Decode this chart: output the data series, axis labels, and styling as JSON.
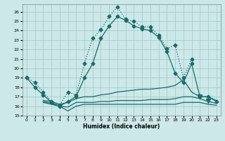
{
  "xlabel": "Humidex (Indice chaleur)",
  "background_color": "#cce8e8",
  "grid_color": "#aacccc",
  "line_color": "#1a6b6b",
  "xlim": [
    -0.5,
    23.5
  ],
  "ylim": [
    15,
    26.8
  ],
  "xticks": [
    0,
    1,
    2,
    3,
    4,
    5,
    6,
    7,
    8,
    9,
    10,
    11,
    12,
    13,
    14,
    15,
    16,
    17,
    18,
    19,
    20,
    21,
    22,
    23
  ],
  "yticks": [
    15,
    16,
    17,
    18,
    19,
    20,
    21,
    22,
    23,
    24,
    25,
    26
  ],
  "series": {
    "line1_dotted": {
      "x": [
        0,
        1,
        2,
        3,
        4,
        5,
        6,
        7,
        8,
        9,
        10,
        11,
        12,
        13,
        14,
        15,
        16,
        17,
        18,
        19,
        20
      ],
      "y": [
        19.0,
        18.5,
        17.5,
        16.5,
        16.1,
        17.5,
        17.2,
        20.5,
        23.2,
        24.1,
        25.5,
        26.5,
        25.2,
        25.0,
        24.4,
        24.4,
        23.5,
        22.1,
        22.5,
        19.0,
        21.0
      ]
    },
    "line2_solid_markers": {
      "x": [
        0,
        1,
        2,
        3,
        4,
        5,
        6,
        7,
        8,
        9,
        10,
        11,
        12,
        13,
        14,
        15,
        16,
        17,
        18,
        19,
        20,
        21,
        22,
        23
      ],
      "y": [
        19.0,
        18.0,
        17.2,
        16.4,
        16.0,
        16.5,
        17.0,
        19.0,
        20.5,
        23.2,
        24.5,
        25.5,
        25.1,
        24.5,
        24.2,
        24.0,
        23.3,
        21.8,
        19.5,
        18.5,
        20.5,
        17.0,
        17.0,
        16.5
      ]
    },
    "line3_flat_top": {
      "x": [
        2,
        3,
        4,
        5,
        6,
        7,
        8,
        9,
        10,
        11,
        12,
        13,
        14,
        15,
        16,
        17,
        18,
        19,
        20,
        21,
        22,
        23
      ],
      "y": [
        16.6,
        16.5,
        16.2,
        16.4,
        16.8,
        17.0,
        17.0,
        17.2,
        17.3,
        17.5,
        17.6,
        17.7,
        17.8,
        17.8,
        17.9,
        18.0,
        18.2,
        18.8,
        17.5,
        17.0,
        17.0,
        16.6
      ]
    },
    "line4_flat_mid": {
      "x": [
        2,
        3,
        4,
        5,
        6,
        7,
        8,
        9,
        10,
        11,
        12,
        13,
        14,
        15,
        16,
        17,
        18,
        19,
        20,
        21,
        22,
        23
      ],
      "y": [
        16.5,
        16.3,
        16.0,
        15.9,
        16.4,
        16.4,
        16.4,
        16.5,
        16.5,
        16.6,
        16.6,
        16.6,
        16.6,
        16.7,
        16.7,
        16.7,
        16.8,
        17.0,
        17.0,
        16.8,
        16.5,
        16.3
      ]
    },
    "line5_flat_bottom": {
      "x": [
        2,
        3,
        4,
        5,
        6,
        7,
        8,
        9,
        10,
        11,
        12,
        13,
        14,
        15,
        16,
        17,
        18,
        19,
        20,
        21,
        22,
        23
      ],
      "y": [
        16.4,
        16.2,
        16.0,
        15.5,
        16.0,
        16.2,
        16.2,
        16.2,
        16.2,
        16.2,
        16.2,
        16.2,
        16.2,
        16.2,
        16.2,
        16.2,
        16.2,
        16.4,
        16.4,
        16.4,
        16.2,
        16.1
      ]
    }
  }
}
